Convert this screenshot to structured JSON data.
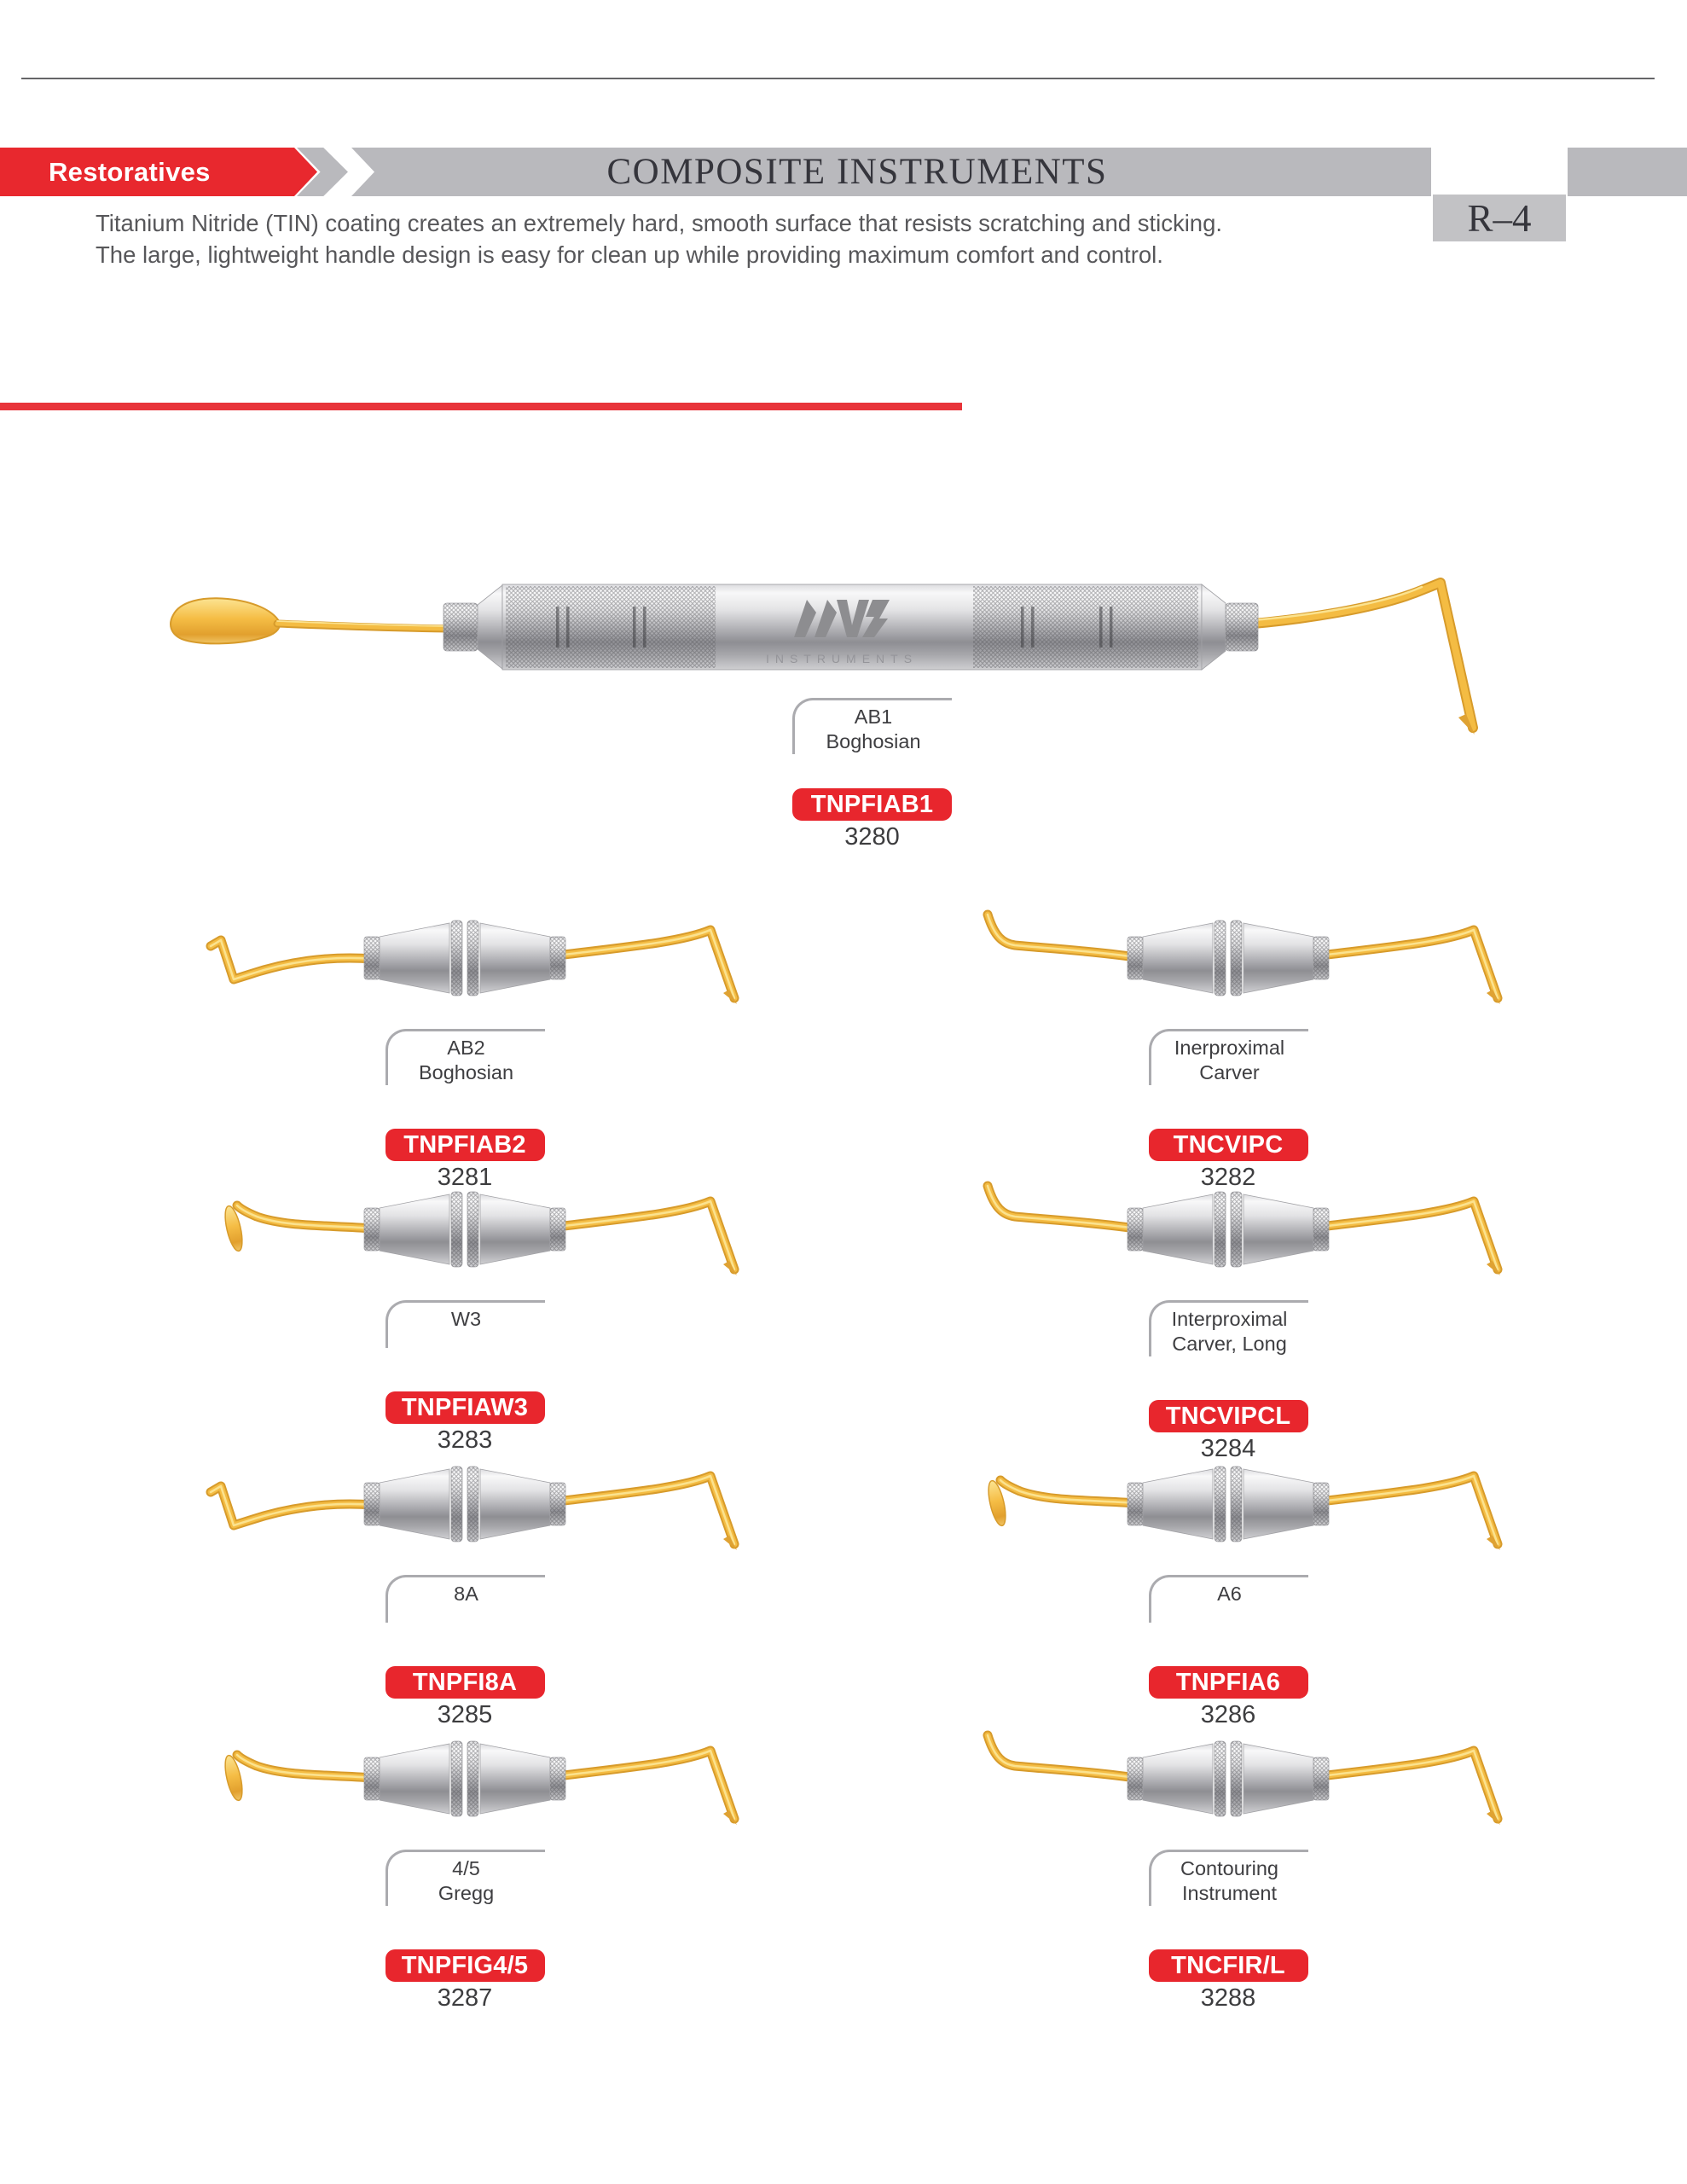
{
  "header": {
    "category_label": "Restoratives",
    "title": "COMPOSITE INSTRUMENTS",
    "page_ref": "R–4",
    "description_line1": "Titanium Nitride (TIN) coating creates an extremely hard, smooth surface that resists scratching and sticking.",
    "description_line2": "The large, lightweight handle design is easy for clean up while providing maximum comfort and control."
  },
  "brand": {
    "logo": "mv-instruments-logo",
    "text": "INSTRUMENTS"
  },
  "colors": {
    "accent_red": "#e8282e",
    "banner_gray": "#b9b9bd",
    "page_ref_gray": "#c2c2c5",
    "text_dark": "#3d3d41",
    "tip_gold": "#f4bc43",
    "handle_silver": "#b6b6ba"
  },
  "hero": {
    "name_line1": "AB1",
    "name_line2": "Boghosian",
    "code": "TNPFIAB1",
    "item_number": "3280"
  },
  "items": [
    {
      "name_line1": "AB2",
      "name_line2": "Boghosian",
      "code": "TNPFIAB2",
      "item_number": "3281",
      "tip_style": "hook"
    },
    {
      "name_line1": "Inerproximal",
      "name_line2": "Carver",
      "code": "TNCVIPC",
      "item_number": "3282",
      "tip_style": "spike"
    },
    {
      "name_line1": "W3",
      "name_line2": "",
      "code": "TNPFIAW3",
      "item_number": "3283",
      "tip_style": "plugger"
    },
    {
      "name_line1": "Interproximal",
      "name_line2": "Carver, Long",
      "code": "TNCVIPCL",
      "item_number": "3284",
      "tip_style": "spike"
    },
    {
      "name_line1": "8A",
      "name_line2": "",
      "code": "TNPFI8A",
      "item_number": "3285",
      "tip_style": "hook"
    },
    {
      "name_line1": "A6",
      "name_line2": "",
      "code": "TNPFIA6",
      "item_number": "3286",
      "tip_style": "plugger"
    },
    {
      "name_line1": "4/5",
      "name_line2": "Gregg",
      "code": "TNPFIG4/5",
      "item_number": "3287",
      "tip_style": "plugger"
    },
    {
      "name_line1": "Contouring",
      "name_line2": "Instrument",
      "code": "TNCFIR/L",
      "item_number": "3288",
      "tip_style": "spike"
    }
  ]
}
